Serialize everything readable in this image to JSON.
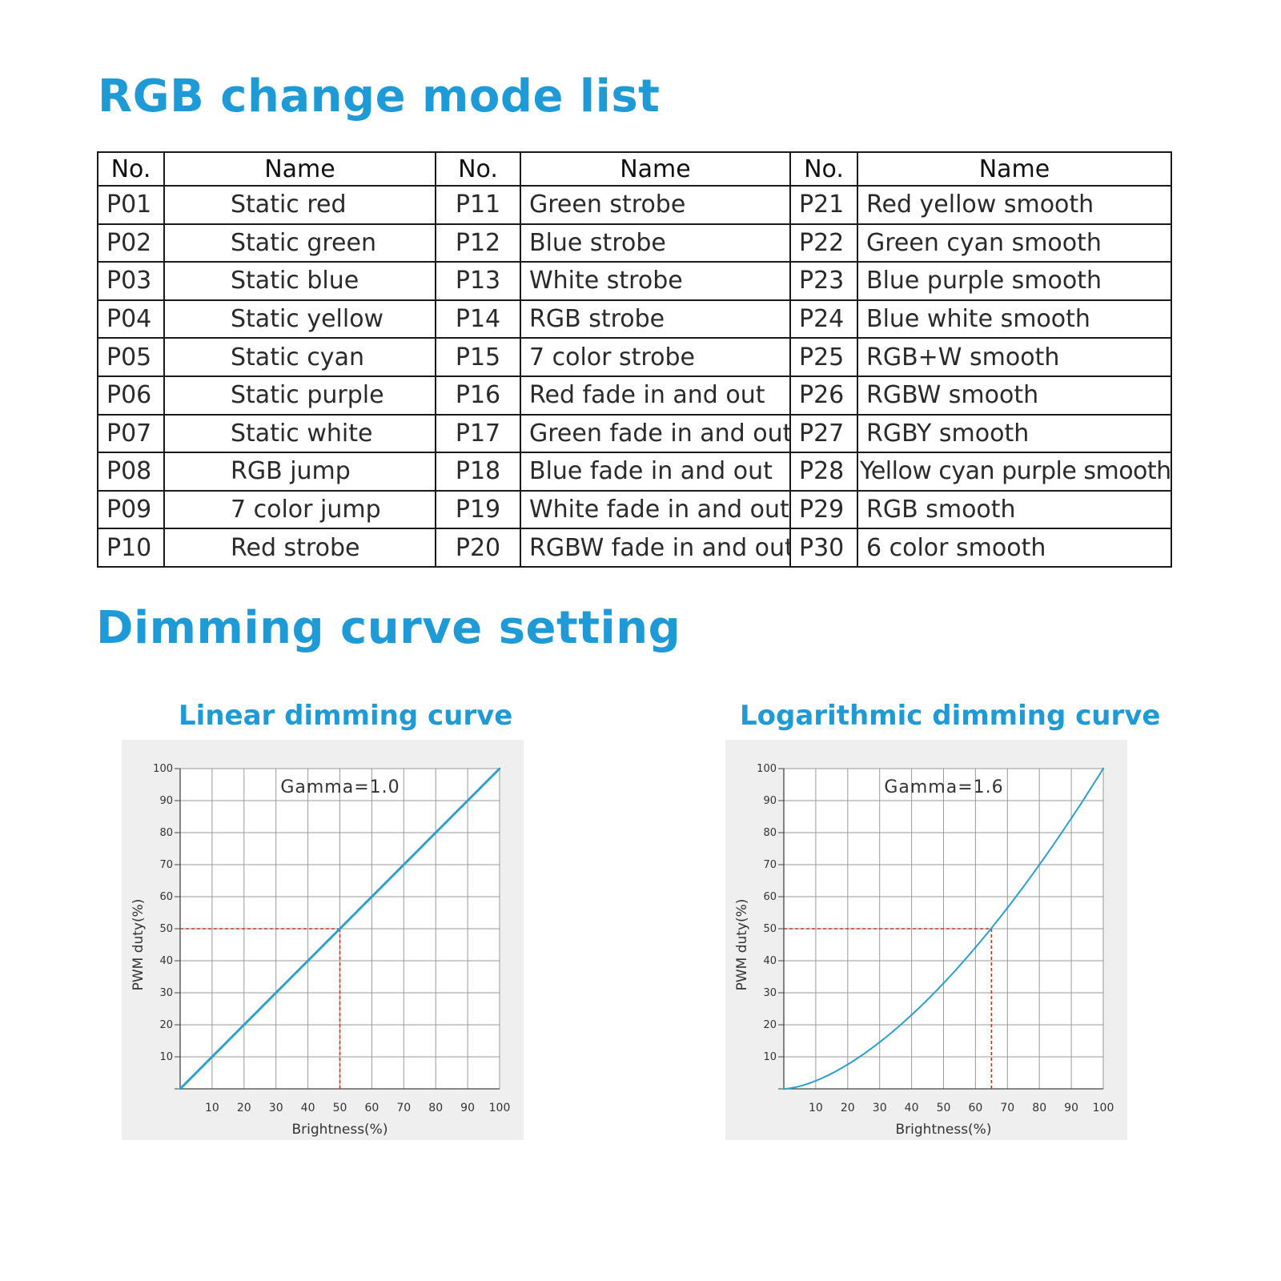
{
  "titles": {
    "rgb": "RGB change mode list",
    "dimming": "Dimming curve setting"
  },
  "table": {
    "headers": [
      "No.",
      "Name",
      "No.",
      "Name",
      "No.",
      "Name"
    ],
    "rows": [
      [
        "P01",
        "Static red",
        "P11",
        "Green strobe",
        "P21",
        "Red yellow smooth"
      ],
      [
        "P02",
        "Static green",
        "P12",
        "Blue strobe",
        "P22",
        "Green cyan smooth"
      ],
      [
        "P03",
        "Static blue",
        "P13",
        "White strobe",
        "P23",
        "Blue purple smooth"
      ],
      [
        "P04",
        "Static yellow",
        "P14",
        "RGB strobe",
        "P24",
        "Blue white smooth"
      ],
      [
        "P05",
        "Static cyan",
        "P15",
        "7 color strobe",
        "P25",
        "RGB+W smooth"
      ],
      [
        "P06",
        "Static purple",
        "P16",
        "Red fade in and out",
        "P26",
        "RGBW smooth"
      ],
      [
        "P07",
        "Static white",
        "P17",
        "Green fade in and out",
        "P27",
        "RGBY smooth"
      ],
      [
        "P08",
        "RGB jump",
        "P18",
        "Blue fade in and out",
        "P28",
        "Yellow cyan purple smooth"
      ],
      [
        "P09",
        "7 color jump",
        "P19",
        "White fade in and out",
        "P29",
        "RGB smooth"
      ],
      [
        "P10",
        "Red strobe",
        "P20",
        "RGBW fade in and out",
        "P30",
        "6 color smooth"
      ]
    ]
  },
  "chart_data": [
    {
      "type": "line",
      "title": "Linear dimming curve",
      "annotation": "Gamma=1.0",
      "gamma": 1.0,
      "xlabel": "Brightness(%)",
      "ylabel": "PWM duty(%)",
      "xlim": [
        0,
        100
      ],
      "ylim": [
        0,
        100
      ],
      "xticks": [
        10,
        20,
        30,
        40,
        50,
        60,
        70,
        80,
        90,
        100
      ],
      "yticks": [
        10,
        20,
        30,
        40,
        50,
        60,
        70,
        80,
        90,
        100
      ],
      "grid": true,
      "x": [
        0,
        10,
        20,
        30,
        40,
        50,
        60,
        70,
        80,
        90,
        100
      ],
      "y": [
        0,
        10,
        20,
        30,
        40,
        50,
        60,
        70,
        80,
        90,
        100
      ],
      "reference": {
        "x": 50,
        "y": 50
      },
      "line_color": "#2a9fd0",
      "reference_color": "#c0392b"
    },
    {
      "type": "line",
      "title": "Logarithmic dimming curve",
      "annotation": "Gamma=1.6",
      "gamma": 1.6,
      "xlabel": "Brightness(%)",
      "ylabel": "PWM duty(%)",
      "xlim": [
        0,
        100
      ],
      "ylim": [
        0,
        100
      ],
      "xticks": [
        10,
        20,
        30,
        40,
        50,
        60,
        70,
        80,
        90,
        100
      ],
      "yticks": [
        10,
        20,
        30,
        40,
        50,
        60,
        70,
        80,
        90,
        100
      ],
      "grid": true,
      "x": [
        0,
        10,
        20,
        30,
        40,
        50,
        60,
        70,
        80,
        90,
        100
      ],
      "y": [
        0,
        2.5,
        7.6,
        14.6,
        23.1,
        33.0,
        44.2,
        56.5,
        70.0,
        84.5,
        100
      ],
      "reference": {
        "x": 65,
        "y": 50
      },
      "line_color": "#2a9fd0",
      "reference_color": "#c0392b"
    }
  ]
}
